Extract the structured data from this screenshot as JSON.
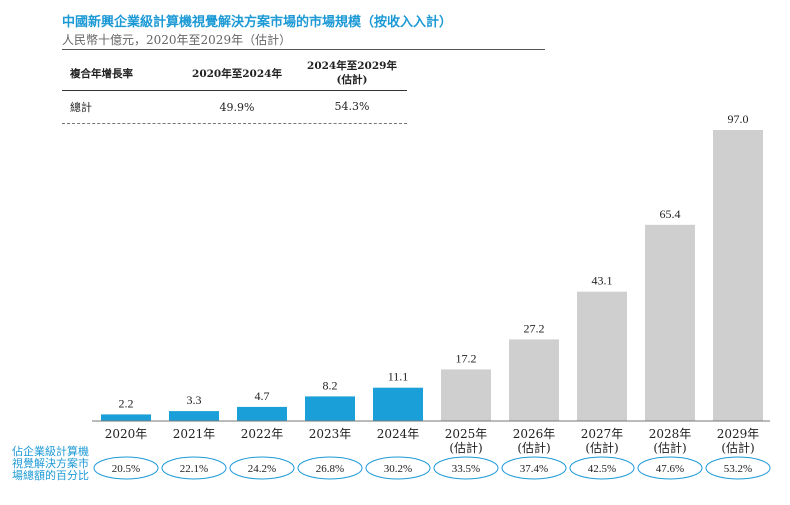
{
  "chart_data": {
    "type": "bar",
    "title": "中國新興企業級計算機視覺解決方案市場的市場規模（按收入入計）",
    "subtitle": "人民幣十億元，2020年至2029年（估計）",
    "categories": [
      "2020年",
      "2021年",
      "2022年",
      "2023年",
      "2024年",
      "2025年\n(估計)",
      "2026年\n(估計)",
      "2027年\n(估計)",
      "2028年\n(估計)",
      "2029年\n(估計)"
    ],
    "values": [
      2.2,
      3.3,
      4.7,
      8.2,
      11.1,
      17.2,
      27.2,
      43.1,
      65.4,
      97.0
    ],
    "value_labels": [
      "2.2",
      "3.3",
      "4.7",
      "8.2",
      "11.1",
      "17.2",
      "27.2",
      "43.1",
      "65.4",
      "97.0"
    ],
    "estimated": [
      false,
      false,
      false,
      false,
      false,
      true,
      true,
      true,
      true,
      true
    ],
    "share_label": "佔企業級計算機視覺解決方案市場總額的百分比",
    "share_values": [
      "20.5%",
      "22.1%",
      "24.2%",
      "26.8%",
      "30.2%",
      "33.5%",
      "37.4%",
      "42.5%",
      "47.6%",
      "53.2%"
    ],
    "cagr_table": {
      "headers": [
        "複合年增長率",
        "2020年至2024年",
        "2024年至2029年\n(估計)"
      ],
      "row": [
        "總計",
        "49.9%",
        "54.3%"
      ]
    },
    "colors": {
      "actual": "#1a9fd8",
      "estimated": "#cfcfcf",
      "accent": "#1d9ad6"
    },
    "ylim": [
      0,
      100
    ],
    "grid": false,
    "legend": "none"
  }
}
